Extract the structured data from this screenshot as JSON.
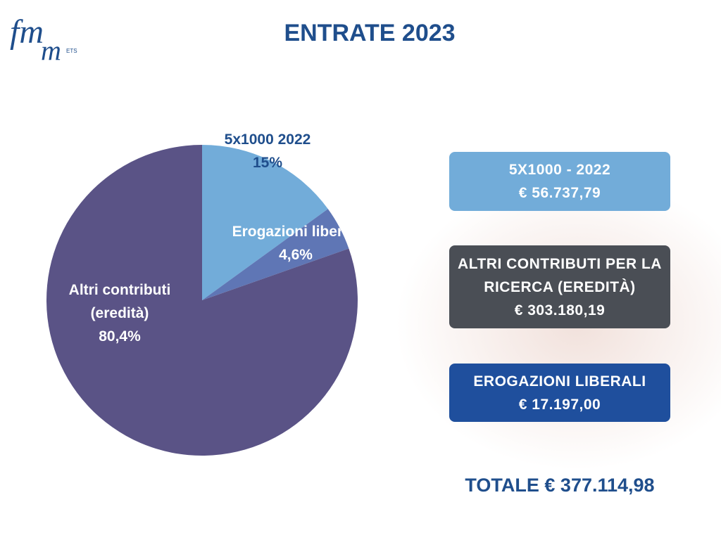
{
  "logo": {
    "top": "fm",
    "bottom": "m",
    "suffix": "ETS"
  },
  "chart_data": {
    "type": "pie",
    "title": "ENTRATE 2023",
    "categories": [
      "5x1000 2022",
      "Erogazioni liberali",
      "Altri contributi (eredità)"
    ],
    "values": [
      15,
      4.6,
      80.4
    ],
    "value_labels": [
      "15%",
      "4,6%",
      "80,4%"
    ],
    "colors": [
      "#72acd9",
      "#5f76b5",
      "#5a5386"
    ]
  },
  "panels": [
    {
      "title": "5X1000 - 2022",
      "amount": "€ 56.737,79",
      "color": "#72acd9"
    },
    {
      "title": "ALTRI CONTRIBUTI PER LA RICERCA (EREDITÀ)",
      "amount": "€ 303.180,19",
      "color": "#4a4e55"
    },
    {
      "title": "EROGAZIONI LIBERALI",
      "amount": "€ 17.197,00",
      "color": "#1f4f9d"
    }
  ],
  "total": "TOTALE € 377.114,98"
}
